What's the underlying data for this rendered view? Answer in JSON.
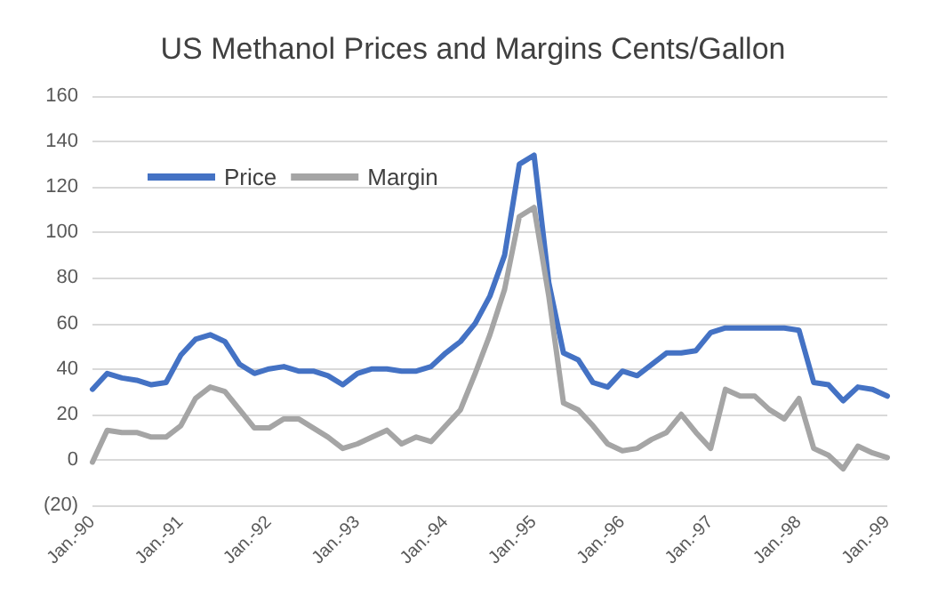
{
  "chart_data": {
    "type": "line",
    "title": "US Methanol Prices and Margins Cents/Gallon",
    "categories": [
      "Jan.-90",
      null,
      null,
      null,
      null,
      null,
      "Jan.-91",
      null,
      null,
      null,
      null,
      null,
      "Jan.-92",
      null,
      null,
      null,
      null,
      null,
      "Jan.-93",
      null,
      null,
      null,
      null,
      null,
      "Jan.-94",
      null,
      null,
      null,
      null,
      null,
      "Jan.-95",
      null,
      null,
      null,
      null,
      null,
      "Jan.-96",
      null,
      null,
      null,
      null,
      null,
      "Jan.-97",
      null,
      null,
      null,
      null,
      null,
      "Jan.-98",
      null,
      null,
      null,
      null,
      null,
      "Jan.-99"
    ],
    "series": [
      {
        "name": "Price",
        "color": "#4472c4",
        "values": [
          31,
          38,
          36,
          35,
          33,
          34,
          46,
          53,
          55,
          52,
          42,
          38,
          40,
          41,
          39,
          39,
          37,
          33,
          38,
          40,
          40,
          39,
          39,
          41,
          47,
          52,
          60,
          72,
          90,
          130,
          134,
          78,
          47,
          44,
          34,
          32,
          39,
          37,
          42,
          47,
          47,
          48,
          56,
          58,
          58,
          58,
          58,
          58,
          57,
          34,
          33,
          26,
          32,
          31,
          28
        ]
      },
      {
        "name": "Margin",
        "color": "#a5a5a5",
        "values": [
          -1,
          13,
          12,
          12,
          10,
          10,
          15,
          27,
          32,
          30,
          22,
          14,
          14,
          18,
          18,
          14,
          10,
          5,
          7,
          10,
          13,
          7,
          10,
          8,
          15,
          22,
          38,
          55,
          75,
          107,
          111,
          72,
          25,
          22,
          15,
          7,
          4,
          5,
          9,
          12,
          20,
          12,
          5,
          31,
          28,
          28,
          22,
          18,
          27,
          5,
          2,
          -4,
          6,
          3,
          1
        ]
      }
    ],
    "ylim": [
      -20,
      160
    ],
    "yticks": [
      {
        "value": -20,
        "label": "(20)"
      },
      0,
      20,
      40,
      60,
      80,
      100,
      120,
      140,
      160
    ],
    "grid": "y",
    "legend": "top left",
    "marker": "none",
    "line_style": "solid"
  }
}
